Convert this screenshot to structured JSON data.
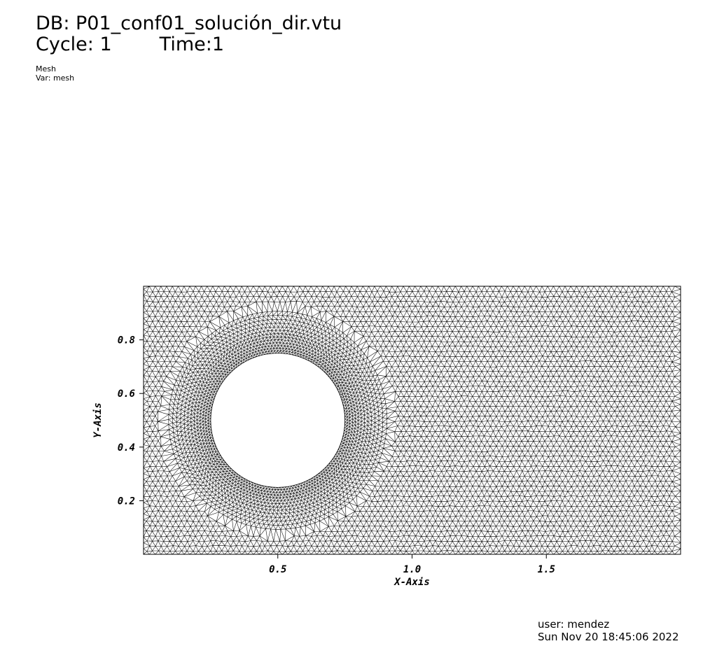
{
  "header": {
    "db": "DB: P01_conf01_solución_dir.vtu",
    "cycle": "Cycle: 1",
    "time": "Time:1",
    "plot_type": "Mesh",
    "variable": "Var: mesh"
  },
  "footer": {
    "user": "user: mendez",
    "date": "Sun Nov 20 18:45:06 2022"
  },
  "chart_data": {
    "type": "mesh",
    "xlabel": "X-Axis",
    "ylabel": "Y-Axis",
    "xlim": [
      0,
      2
    ],
    "ylim": [
      0,
      1
    ],
    "x_ticks": [
      0.5,
      1.0,
      1.5
    ],
    "x_tick_labels": [
      "0.5",
      "1.0",
      "1.5"
    ],
    "y_ticks": [
      0.2,
      0.4,
      0.6,
      0.8
    ],
    "y_tick_labels": [
      "0.2",
      "0.4",
      "0.6",
      "0.8"
    ],
    "hole": {
      "shape": "circle",
      "center": [
        0.5,
        0.5
      ],
      "radius": 0.25
    },
    "mesh_color": "#000000",
    "grid": false
  }
}
